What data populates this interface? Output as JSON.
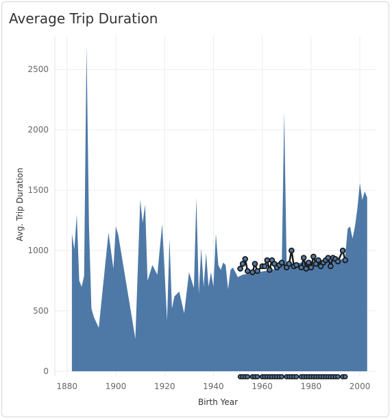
{
  "title": "Average Trip Duration",
  "colors": {
    "area": "#4e79a7",
    "marker_fill": "#4e79a7",
    "marker_stroke": "#1a1a1a",
    "grid": "#ececec",
    "axis_text": "#666666"
  },
  "chart_data": {
    "type": "area",
    "title": "Average Trip Duration",
    "xlabel": "Birth Year",
    "ylabel": "Avg. Trip Duration",
    "xlim": [
      1875,
      2007
    ],
    "ylim": [
      -40,
      2780
    ],
    "x_ticks": [
      1880,
      1900,
      1920,
      1940,
      1960,
      1980,
      2000
    ],
    "y_ticks": [
      0,
      500,
      1000,
      1500,
      2000,
      2500
    ],
    "grid": true,
    "legend": "none",
    "area_series": {
      "name": "",
      "x": [
        1882,
        1883,
        1884,
        1885,
        1886,
        1887,
        1888,
        1889,
        1890,
        1891,
        1893,
        1897,
        1899,
        1900,
        1901,
        1908,
        1910,
        1911,
        1912,
        1913,
        1915,
        1917,
        1919,
        1921,
        1922,
        1923,
        1924,
        1926,
        1928,
        1930,
        1932,
        1933,
        1934,
        1935,
        1936,
        1937,
        1938,
        1939,
        1940,
        1941,
        1942,
        1943,
        1944,
        1945,
        1946,
        1947,
        1948,
        1950,
        1952,
        1955,
        1958,
        1961,
        1964,
        1967,
        1968,
        1969,
        1970,
        1971,
        1973,
        1976,
        1979,
        1982,
        1985,
        1988,
        1991,
        1993,
        1994,
        1995,
        1996,
        1997,
        1998,
        1999,
        2000,
        2001,
        2002,
        2003
      ],
      "y": [
        1140,
        1010,
        1300,
        750,
        700,
        790,
        2700,
        1200,
        520,
        450,
        360,
        1150,
        850,
        1200,
        1130,
        270,
        1420,
        1230,
        1380,
        750,
        880,
        800,
        1220,
        420,
        1100,
        520,
        620,
        660,
        480,
        820,
        690,
        1440,
        640,
        1020,
        700,
        980,
        700,
        820,
        700,
        1140,
        880,
        840,
        900,
        880,
        680,
        840,
        860,
        780,
        800,
        810,
        820,
        830,
        840,
        860,
        870,
        2150,
        880,
        890,
        890,
        900,
        900,
        910,
        910,
        920,
        920,
        930,
        950,
        1180,
        1200,
        1100,
        1200,
        1350,
        1560,
        1420,
        1490,
        1440
      ]
    },
    "marker_series": {
      "name": "",
      "x": [
        1951,
        1952,
        1953,
        1954,
        1956,
        1957,
        1958,
        1960,
        1961,
        1962,
        1963,
        1964,
        1965,
        1966,
        1967,
        1968,
        1970,
        1971,
        1972,
        1973,
        1974,
        1976,
        1977,
        1978,
        1979,
        1980,
        1981,
        1982,
        1983,
        1984,
        1985,
        1986,
        1987,
        1988,
        1989,
        1990,
        1991,
        1993,
        1994
      ],
      "y": [
        850,
        890,
        930,
        830,
        820,
        890,
        830,
        870,
        870,
        920,
        840,
        920,
        890,
        860,
        880,
        900,
        860,
        890,
        1000,
        870,
        880,
        860,
        940,
        850,
        900,
        860,
        950,
        890,
        920,
        870,
        900,
        920,
        940,
        870,
        940,
        930,
        910,
        1000,
        920
      ],
      "baseline_x": [
        1951,
        1952,
        1953,
        1954,
        1956,
        1957,
        1958,
        1960,
        1961,
        1962,
        1963,
        1964,
        1965,
        1966,
        1967,
        1968,
        1970,
        1971,
        1972,
        1973,
        1974,
        1976,
        1977,
        1978,
        1979,
        1980,
        1981,
        1982,
        1983,
        1984,
        1985,
        1986,
        1987,
        1988,
        1989,
        1990,
        1991,
        1993,
        1994
      ],
      "baseline_y": 0
    }
  }
}
